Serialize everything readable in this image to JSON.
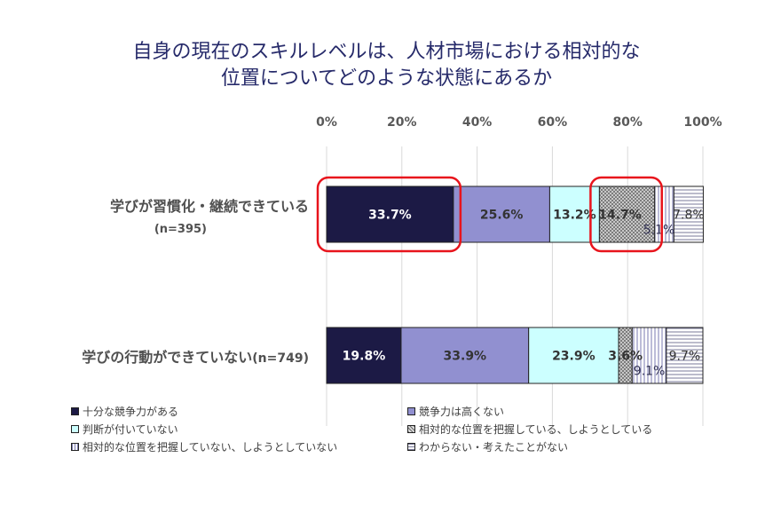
{
  "title_lines": [
    "自身の現在のスキルレベルは、人材市場における相対的な",
    "位置についてどのような状態にあるか"
  ],
  "colors": {
    "s0": "#1c1a45",
    "s1": "#9190d0",
    "s2": "#ccffff",
    "s3": "#c8c8c8",
    "s4": "#ffffff",
    "s5": "#ffffff",
    "highlight": "#e8141c",
    "grid": "#d9d9d9"
  },
  "chart_data": {
    "type": "bar",
    "orientation": "horizontal-stacked-100",
    "xlim": [
      0,
      100
    ],
    "x_ticks": [
      "0%",
      "20%",
      "40%",
      "60%",
      "80%",
      "100%"
    ],
    "categories": [
      {
        "label": "学びが習慣化・継続できている",
        "n": "(n=395)"
      },
      {
        "label": "学びの行動ができていない",
        "n": "(n=749)"
      }
    ],
    "series": [
      {
        "name": "十分な競争力がある",
        "values": [
          33.7,
          19.8
        ],
        "labels": [
          "33.7%",
          "19.8%"
        ],
        "pattern": "solid",
        "key": "s0"
      },
      {
        "name": "競争力は高くない",
        "values": [
          25.6,
          33.9
        ],
        "labels": [
          "25.6%",
          "33.9%"
        ],
        "pattern": "solid",
        "key": "s1"
      },
      {
        "name": "判断が付いていない",
        "values": [
          13.2,
          23.9
        ],
        "labels": [
          "13.2%",
          "23.9%"
        ],
        "pattern": "solid",
        "key": "s2"
      },
      {
        "name": "相対的な位置を把握している、しようとしている",
        "values": [
          14.7,
          3.6
        ],
        "labels": [
          "14.7%",
          "3.6%"
        ],
        "pattern": "crosshatch",
        "key": "s3"
      },
      {
        "name": "相対的な位置を把握していない、しようとしていない",
        "values": [
          5.1,
          9.1
        ],
        "labels": [
          "5.1%",
          "9.1%"
        ],
        "pattern": "vertical",
        "key": "s4"
      },
      {
        "name": "わからない・考えたことがない",
        "values": [
          7.8,
          9.7
        ],
        "labels": [
          "7.8%",
          "9.7%"
        ],
        "pattern": "horizontal",
        "key": "s5"
      }
    ],
    "highlights": [
      {
        "category": 0,
        "series": 0
      },
      {
        "category": 0,
        "series": 3
      }
    ]
  }
}
